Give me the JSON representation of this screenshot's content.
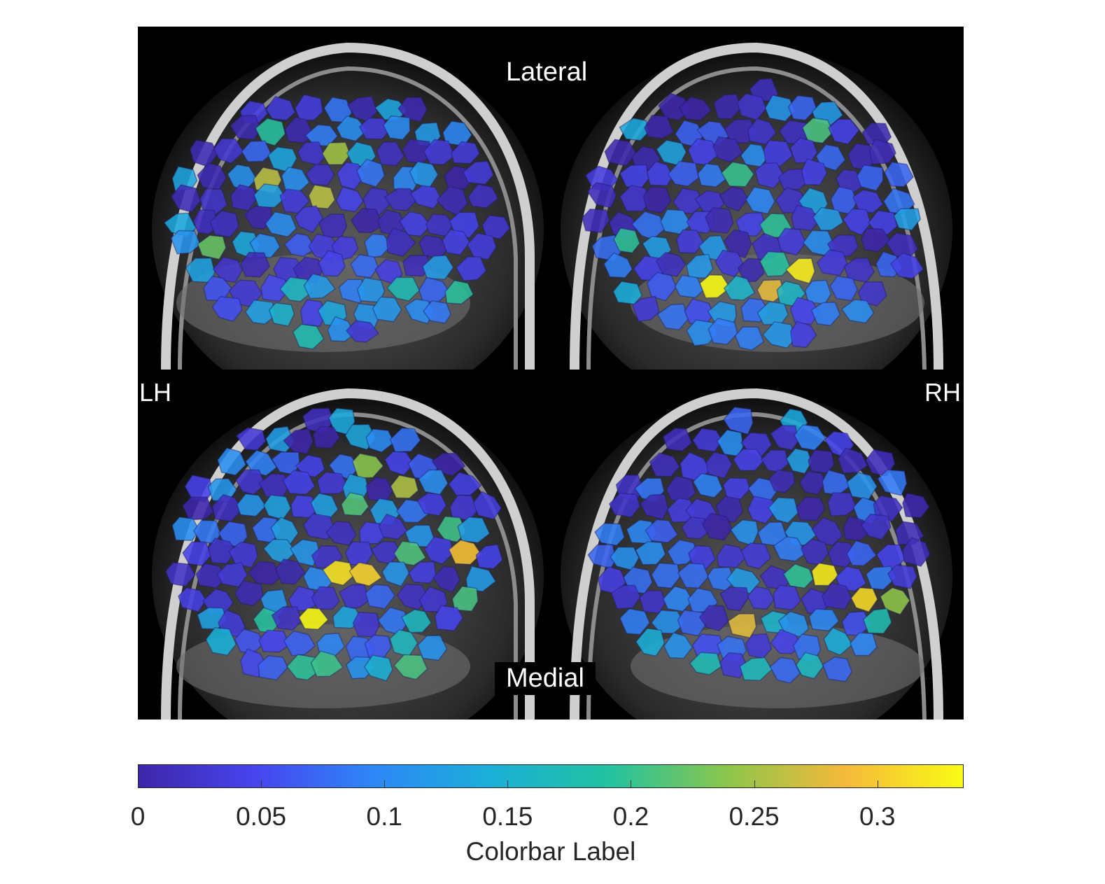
{
  "figure": {
    "label_top": "Lateral",
    "label_bottom": "Medial",
    "label_left": "LH",
    "label_right": "RH"
  },
  "colorbar": {
    "label": "Colorbar Label",
    "ticks": [
      "0",
      "0.05",
      "0.1",
      "0.15",
      "0.2",
      "0.25",
      "0.3"
    ],
    "tick_values": [
      0,
      0.05,
      0.1,
      0.15,
      0.2,
      0.25,
      0.3
    ],
    "range": [
      0,
      0.335
    ],
    "colormap": "parula",
    "colors": [
      "#3e26a8",
      "#4745f0",
      "#2e87f7",
      "#1ab0d7",
      "#23c2a1",
      "#8cc64b",
      "#f5b93a",
      "#f9fb15"
    ]
  }
}
